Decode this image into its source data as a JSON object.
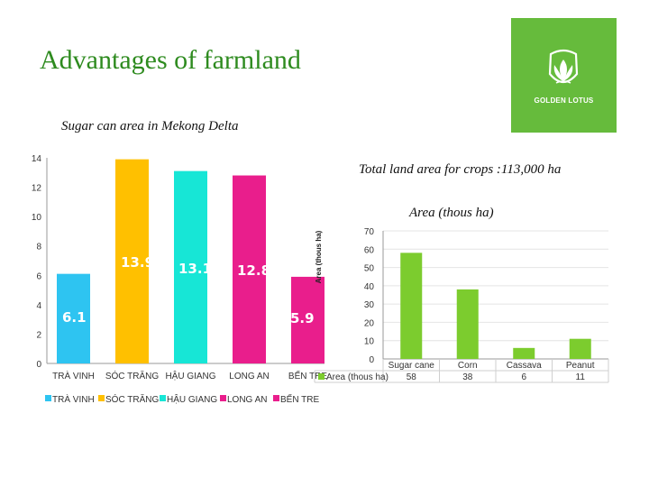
{
  "slide": {
    "title": "Advantages of farmland",
    "subtitle": "Sugar can area in Mekong Delta",
    "total_note": "Total land area for crops :113,000 ha",
    "area_title": "Area (thous ha)"
  },
  "logo": {
    "name": "GOLDEN LOTUS",
    "icon": "lotus-icon",
    "color": "#66bb3c"
  },
  "chart_data": [
    {
      "type": "bar",
      "categories": [
        "TRÀ VINH",
        "SÓC TRĂNG",
        "HẬU GIANG",
        "LONG AN",
        "BẾN TRE"
      ],
      "values": [
        6.1,
        13.9,
        13.1,
        12.8,
        5.9
      ],
      "colors": [
        "#2ec4f1",
        "#ffc000",
        "#17e6d6",
        "#e91e8c",
        "#e91e8c"
      ],
      "yticks": [
        0,
        2,
        4,
        6,
        8,
        10,
        12,
        14
      ],
      "ylim": [
        0,
        14
      ],
      "ylabel": "Area (thous ha)",
      "legend": [
        "TRÀ VINH",
        "SÓC TRĂNG",
        "HẬU GIANG",
        "LONG AN",
        "BẾN TRE"
      ],
      "legend_position": "bottom"
    },
    {
      "type": "bar",
      "categories": [
        "Sugar cane",
        "Corn",
        "Cassava",
        "Peanut"
      ],
      "values": [
        58,
        38,
        6,
        11
      ],
      "series_name": "Area (thous ha)",
      "color": "#7ccc2e",
      "yticks": [
        0,
        10,
        20,
        30,
        40,
        50,
        60,
        70
      ],
      "ylim": [
        0,
        70
      ],
      "table_below": true
    }
  ]
}
